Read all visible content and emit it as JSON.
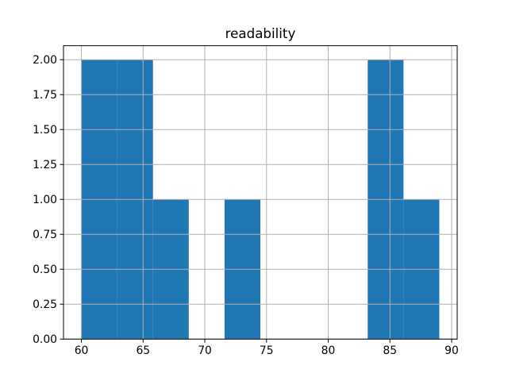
{
  "chart_data": {
    "type": "bar",
    "subtype": "histogram",
    "title": "readability",
    "xlabel": "",
    "ylabel": "",
    "bin_edges": [
      60.0,
      62.9,
      65.8,
      68.7,
      71.6,
      74.5,
      77.4,
      80.3,
      83.2,
      86.1,
      89.0
    ],
    "counts": [
      2,
      2,
      1,
      0,
      1,
      0,
      0,
      0,
      2,
      1
    ],
    "xlim": [
      58.55,
      90.45
    ],
    "ylim": [
      0,
      2.1
    ],
    "x_ticks": [
      60,
      65,
      70,
      75,
      80,
      85,
      90
    ],
    "x_tick_labels": [
      "60",
      "65",
      "70",
      "75",
      "80",
      "85",
      "90"
    ],
    "y_ticks": [
      0.0,
      0.25,
      0.5,
      0.75,
      1.0,
      1.25,
      1.5,
      1.75,
      2.0
    ],
    "y_tick_labels": [
      "0.00",
      "0.25",
      "0.50",
      "0.75",
      "1.00",
      "1.25",
      "1.50",
      "1.75",
      "2.00"
    ],
    "grid": true,
    "grid_above_bars": true,
    "legend": "none",
    "bar_color": "#1f77b4",
    "grid_color": "#b0b0b0",
    "axis_color": "#000000",
    "background_color": "#ffffff"
  }
}
